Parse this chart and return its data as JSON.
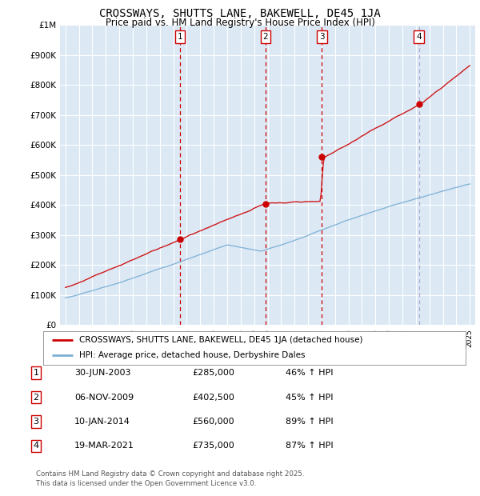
{
  "title": "CROSSWAYS, SHUTTS LANE, BAKEWELL, DE45 1JA",
  "subtitle": "Price paid vs. HM Land Registry's House Price Index (HPI)",
  "plot_bg_color": "#dce9f5",
  "ylim": [
    0,
    1000000
  ],
  "yticks": [
    0,
    100000,
    200000,
    300000,
    400000,
    500000,
    600000,
    700000,
    800000,
    900000,
    1000000
  ],
  "ytick_labels": [
    "£0",
    "£100K",
    "£200K",
    "£300K",
    "£400K",
    "£500K",
    "£600K",
    "£700K",
    "£800K",
    "£900K",
    "£1M"
  ],
  "x_start_year": 1995,
  "x_end_year": 2025,
  "sale_markers": [
    {
      "num": "1",
      "year": 2003.5,
      "price": 285000,
      "vline_color": "#cc0000"
    },
    {
      "num": "2",
      "year": 2009.84,
      "price": 402500,
      "vline_color": "#cc0000"
    },
    {
      "num": "3",
      "year": 2014.03,
      "price": 560000,
      "vline_color": "#cc0000"
    },
    {
      "num": "4",
      "year": 2021.22,
      "price": 735000,
      "vline_color": "#aaaacc"
    }
  ],
  "legend_line1": "CROSSWAYS, SHUTTS LANE, BAKEWELL, DE45 1JA (detached house)",
  "legend_line2": "HPI: Average price, detached house, Derbyshire Dales",
  "table_rows": [
    {
      "num": "1",
      "date": "30-JUN-2003",
      "price": "£285,000",
      "pct": "46% ↑ HPI"
    },
    {
      "num": "2",
      "date": "06-NOV-2009",
      "price": "£402,500",
      "pct": "45% ↑ HPI"
    },
    {
      "num": "3",
      "date": "10-JAN-2014",
      "price": "£560,000",
      "pct": "89% ↑ HPI"
    },
    {
      "num": "4",
      "date": "19-MAR-2021",
      "price": "£735,000",
      "pct": "87% ↑ HPI"
    }
  ],
  "footer": "Contains HM Land Registry data © Crown copyright and database right 2025.\nThis data is licensed under the Open Government Licence v3.0.",
  "red_color": "#cc0000",
  "blue_color": "#7bafd4"
}
